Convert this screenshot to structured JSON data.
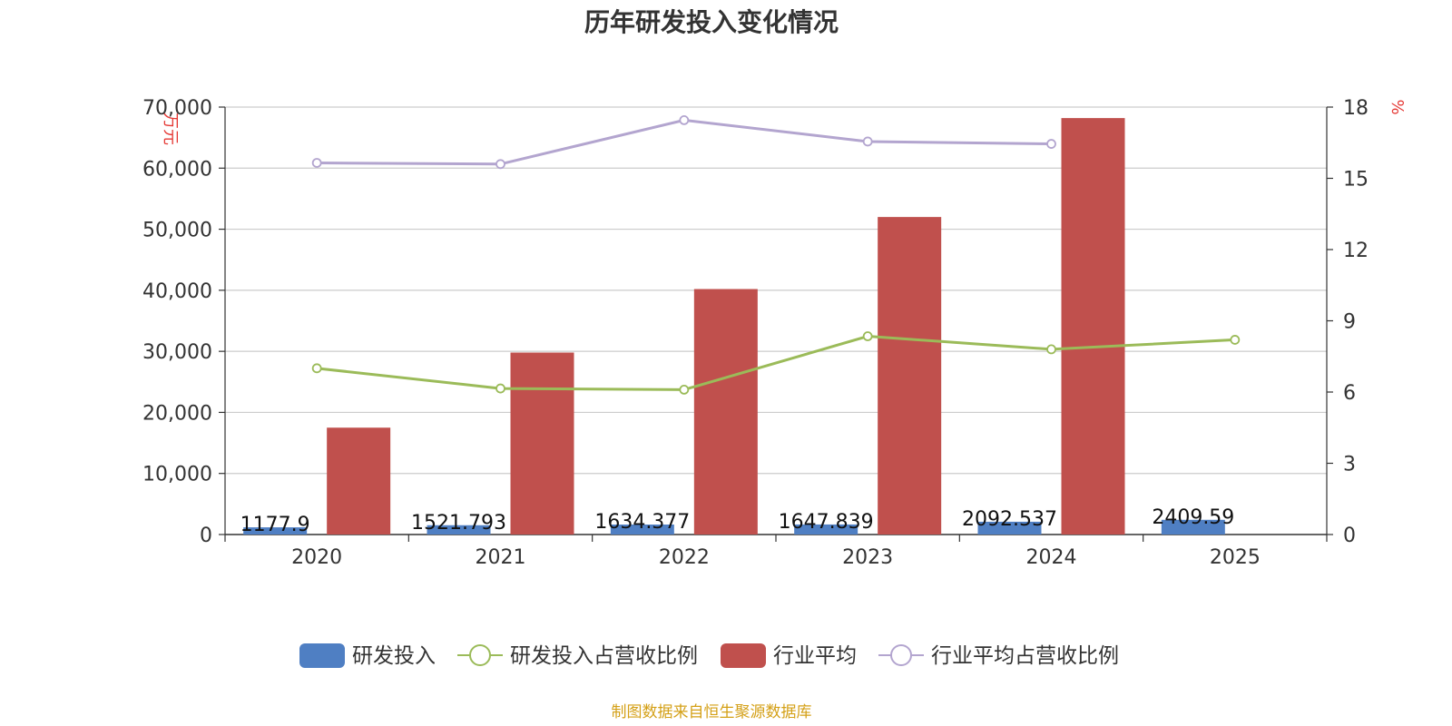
{
  "chart_data": {
    "type": "bar",
    "title": "历年研发投入变化情况",
    "categories": [
      "2020",
      "2021",
      "2022",
      "2023",
      "2024",
      "2025"
    ],
    "y_left": {
      "unit": "万元",
      "range": [
        0,
        70000
      ],
      "ticks": [
        "0",
        "10,000",
        "20,000",
        "30,000",
        "40,000",
        "50,000",
        "60,000",
        "70,000"
      ]
    },
    "y_right": {
      "unit": "%",
      "range": [
        0,
        18
      ],
      "ticks": [
        "0",
        "3",
        "6",
        "9",
        "12",
        "15",
        "18"
      ]
    },
    "grid": true,
    "legend_position": "bottom",
    "series": [
      {
        "name": "研发投入",
        "kind": "bar",
        "axis": "left",
        "color": "#4f7fc3",
        "values": [
          1177.9,
          1521.793,
          1634.377,
          1647.839,
          2092.537,
          2409.59
        ],
        "labels": [
          "1177.9",
          "1521.793",
          "1634.377",
          "1647.839",
          "2092.537",
          "2409.59"
        ]
      },
      {
        "name": "研发投入占营收比例",
        "kind": "line",
        "axis": "right",
        "color": "#9bbb59",
        "values": [
          7.0,
          6.15,
          6.1,
          8.35,
          7.8,
          8.2
        ]
      },
      {
        "name": "行业平均",
        "kind": "bar",
        "axis": "left",
        "color": "#c0504d",
        "values": [
          17500,
          29800,
          40200,
          52000,
          68200,
          null
        ]
      },
      {
        "name": "行业平均占营收比例",
        "kind": "line",
        "axis": "right",
        "color": "#b3a5cf",
        "values": [
          15.65,
          15.6,
          17.45,
          16.55,
          16.45,
          null
        ]
      }
    ]
  },
  "source": "制图数据来自恒生聚源数据库"
}
